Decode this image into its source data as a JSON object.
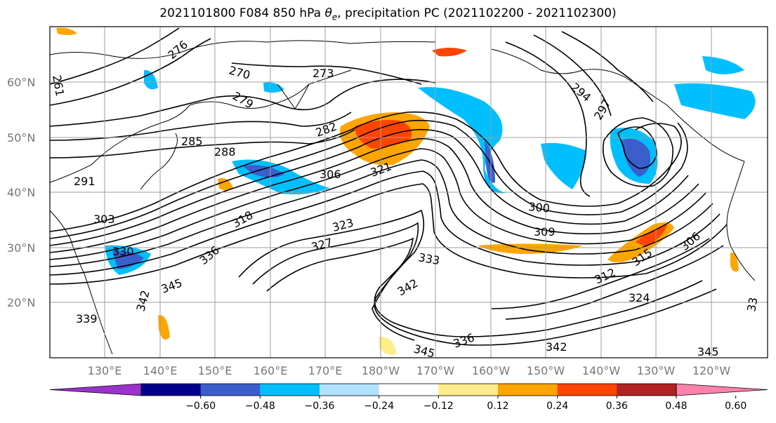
{
  "title": {
    "prefix": "2021101800 F084 850 hPa ",
    "theta": "θ",
    "theta_sub": "e",
    "suffix": ", precipitation PC (2021102200 - 2021102300)"
  },
  "map": {
    "lat_labels": [
      "60°N",
      "50°N",
      "40°N",
      "30°N",
      "20°N"
    ],
    "lon_labels": [
      "130°E",
      "140°E",
      "150°E",
      "160°E",
      "170°E",
      "180°W",
      "170°W",
      "160°W",
      "150°W",
      "140°W",
      "130°W",
      "120°W"
    ],
    "contour_labels": [
      "276",
      "261",
      "270",
      "273",
      "279",
      "285",
      "288",
      "282",
      "294",
      "297",
      "291",
      "306",
      "321",
      "303",
      "300",
      "309",
      "318",
      "323",
      "327",
      "333",
      "330",
      "336",
      "342",
      "345",
      "339",
      "312",
      "324",
      "315",
      "306",
      "342",
      "345",
      "336",
      "342",
      "345",
      "33"
    ],
    "colors": {
      "land_line": "#000000",
      "grid": "#9e9e9e",
      "contour": "#000000"
    }
  },
  "colorbar": {
    "ticks": [
      "−0.60",
      "−0.48",
      "−0.36",
      "−0.24",
      "−0.12",
      "0.12",
      "0.24",
      "0.36",
      "0.48",
      "0.60"
    ],
    "colors": [
      "#9a32cd",
      "#00008b",
      "#3a5fcd",
      "#00bfff",
      "#b0e2ff",
      "#ffffff",
      "#ffec8b",
      "#ffa500",
      "#ff4500",
      "#b22222",
      "#ff82ab"
    ]
  }
}
